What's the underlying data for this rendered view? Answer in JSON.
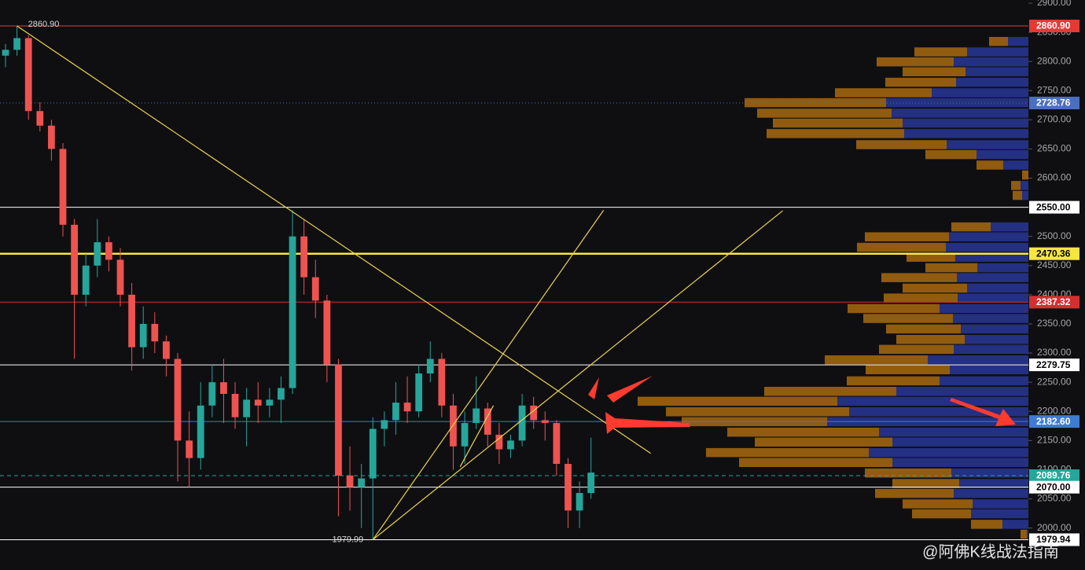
{
  "chart_data": {
    "type": "candlestick",
    "background": "#0f0f12",
    "ylim": [
      1928,
      2905.4
    ],
    "xlim": [
      -0.48,
      89.1
    ],
    "yticks": [
      {
        "value": 2000,
        "label": "2000.00"
      },
      {
        "value": 2050,
        "label": "2050.00"
      },
      {
        "value": 2100,
        "label": "2100.00"
      },
      {
        "value": 2150,
        "label": "2150.00"
      },
      {
        "value": 2200,
        "label": "2200.00"
      },
      {
        "value": 2250,
        "label": "2250.00"
      },
      {
        "value": 2300,
        "label": "2300.00"
      },
      {
        "value": 2350,
        "label": "2350.00"
      },
      {
        "value": 2400,
        "label": "2400.00"
      },
      {
        "value": 2450,
        "label": "2450.00"
      },
      {
        "value": 2500,
        "label": "2500.00"
      },
      {
        "value": 2550,
        "label": "2550.00"
      },
      {
        "value": 2600,
        "label": "2600.00"
      },
      {
        "value": 2650,
        "label": "2650.00"
      },
      {
        "value": 2700,
        "label": "2700.00"
      },
      {
        "value": 2750,
        "label": "2750.00"
      },
      {
        "value": 2800,
        "label": "2800.00"
      },
      {
        "value": 2850,
        "label": "2850.00"
      },
      {
        "value": 2900,
        "label": "2900.00"
      }
    ],
    "up_color": "#26a69a",
    "down_color": "#ef5350",
    "open": [
      2810,
      2820,
      2840,
      2715,
      2690,
      2650,
      2520,
      2400,
      2450,
      2490,
      2460,
      2400,
      2310,
      2350,
      2320,
      2290,
      2150,
      2120,
      2210,
      2250,
      2230,
      2190,
      2220,
      2210,
      2220,
      2240,
      2500,
      2430,
      2390,
      2280,
      2090,
      2070,
      2085,
      2170,
      2185,
      2215,
      2200,
      2265,
      2290,
      2210,
      2140,
      2180,
      2205,
      2160,
      2135,
      2150,
      2210,
      2185,
      2180,
      2110,
      2030,
      2060
    ],
    "high": [
      2830,
      2860.9,
      2845,
      2730,
      2700,
      2660,
      2530,
      2470,
      2530,
      2500,
      2480,
      2420,
      2380,
      2370,
      2330,
      2300,
      2200,
      2250,
      2280,
      2290,
      2250,
      2240,
      2250,
      2240,
      2260,
      2545,
      2530,
      2460,
      2400,
      2290,
      2140,
      2110,
      2190,
      2200,
      2250,
      2260,
      2280,
      2320,
      2300,
      2230,
      2200,
      2260,
      2215,
      2180,
      2160,
      2230,
      2225,
      2200,
      2185,
      2120,
      2080,
      2155
    ],
    "low": [
      2790,
      2810,
      2700,
      2680,
      2630,
      2500,
      2290,
      2380,
      2430,
      2440,
      2380,
      2270,
      2290,
      2300,
      2260,
      2080,
      2070,
      2100,
      2190,
      2180,
      2170,
      2140,
      2180,
      2190,
      2180,
      2230,
      2400,
      2360,
      2250,
      2020,
      2030,
      2000,
      1979.99,
      2140,
      2160,
      2180,
      2190,
      2250,
      2190,
      2100,
      2110,
      2170,
      2140,
      2110,
      2120,
      2140,
      2170,
      2150,
      2090,
      2000,
      2000,
      2050
    ],
    "close": [
      2820,
      2840,
      2715,
      2690,
      2650,
      2520,
      2400,
      2450,
      2490,
      2460,
      2400,
      2310,
      2350,
      2320,
      2290,
      2150,
      2120,
      2210,
      2250,
      2230,
      2190,
      2220,
      2210,
      2220,
      2240,
      2500,
      2430,
      2390,
      2280,
      2090,
      2070,
      2085,
      2170,
      2185,
      2215,
      2200,
      2265,
      2290,
      2210,
      2140,
      2180,
      2205,
      2160,
      2135,
      2150,
      2210,
      2185,
      2180,
      2110,
      2030,
      2060,
      2095
    ],
    "levels": [
      {
        "value": 2860.9,
        "label": "2860.90",
        "color": "#e53935",
        "text_color": "#ffffff",
        "style": "solid",
        "width": 1
      },
      {
        "value": 2728.76,
        "label": "2728.76",
        "color": "#4a6fc0",
        "text_color": "#ffffff",
        "style": "dotted",
        "width": 1
      },
      {
        "value": 2550,
        "label": "2550.00",
        "color": "#ffffff",
        "text_color": "#000000",
        "style": "solid",
        "width": 1
      },
      {
        "value": 2470.36,
        "label": "2470.36",
        "color": "#f5e642",
        "text_color": "#000000",
        "style": "solid",
        "width": 2.5
      },
      {
        "value": 2387.32,
        "label": "2387.32",
        "color": "#d32f2f",
        "text_color": "#ffffff",
        "style": "solid",
        "width": 1
      },
      {
        "value": 2279.75,
        "label": "2279.75",
        "color": "#ffffff",
        "text_color": "#000000",
        "style": "solid",
        "width": 1
      },
      {
        "value": 2182.6,
        "label": "2182.60",
        "color": "#3f7bd1",
        "text_color": "#ffffff",
        "style": "solid",
        "width": 1
      },
      {
        "value": 2089.76,
        "label": "2089.76",
        "color": "#26a69a",
        "text_color": "#ffffff",
        "style": "dashed",
        "width": 1
      },
      {
        "value": 2070,
        "label": "2070.00",
        "color": "#ffffff",
        "text_color": "#000000",
        "style": "solid",
        "width": 1
      },
      {
        "value": 1979.94,
        "label": "1979.94",
        "color": "#ffffff",
        "text_color": "#000000",
        "style": "solid",
        "width": 1
      }
    ],
    "trendlines": [
      {
        "from_index": 1,
        "from_price": 2860.9,
        "to_index": 56.2,
        "to_price": 2128,
        "color": "#e8d44d"
      },
      {
        "from_index": 32,
        "from_price": 1979.99,
        "to_index": 52.1,
        "to_price": 2545,
        "color": "#e8d44d"
      },
      {
        "from_index": 32,
        "from_price": 1979.99,
        "to_index": 67.7,
        "to_price": 2544,
        "color": "#e8d44d"
      },
      {
        "from_index": 39.6,
        "from_price": 2105,
        "to_index": 42.5,
        "to_price": 2210,
        "color": "#e8d44d"
      }
    ],
    "annotations": [
      {
        "text": "2860.90",
        "index": 1,
        "price": 2860.9
      },
      {
        "text": "1979.99",
        "index": 32,
        "price": 1979.99
      }
    ],
    "volume_profile": {
      "up_color": "#a0650f",
      "down_color": "#27348f",
      "prices": [
        2834,
        2816,
        2799,
        2782,
        2764,
        2746,
        2729,
        2711,
        2694,
        2676,
        2657,
        2640,
        2622,
        2605,
        2587,
        2570,
        2516,
        2499,
        2481,
        2464,
        2446,
        2429,
        2411,
        2394,
        2376,
        2359,
        2341,
        2323,
        2306,
        2288,
        2271,
        2252,
        2234,
        2217,
        2199,
        2182,
        2164,
        2147,
        2129,
        2112,
        2094,
        2076,
        2059,
        2041,
        2024,
        2006,
        1989
      ],
      "up": [
        24,
        67,
        98,
        80,
        90,
        123,
        180,
        171,
        165,
        175,
        115,
        65,
        34,
        8,
        12,
        12,
        50,
        107,
        113,
        62,
        66,
        96,
        82,
        94,
        117,
        114,
        95,
        87,
        95,
        131,
        107,
        118,
        168,
        254,
        233,
        185,
        193,
        175,
        207,
        195,
        110,
        85,
        100,
        89,
        75,
        40,
        8
      ],
      "down": [
        26,
        78,
        95,
        80,
        92,
        123,
        181,
        174,
        160,
        158,
        104,
        66,
        32,
        0,
        10,
        8,
        48,
        101,
        105,
        93,
        65,
        91,
        78,
        90,
        113,
        96,
        86,
        81,
        95,
        128,
        100,
        113,
        168,
        243,
        228,
        256,
        190,
        173,
        203,
        173,
        98,
        88,
        95,
        71,
        73,
        33,
        2
      ]
    },
    "watermark": "@阿佛K线战法指南"
  }
}
